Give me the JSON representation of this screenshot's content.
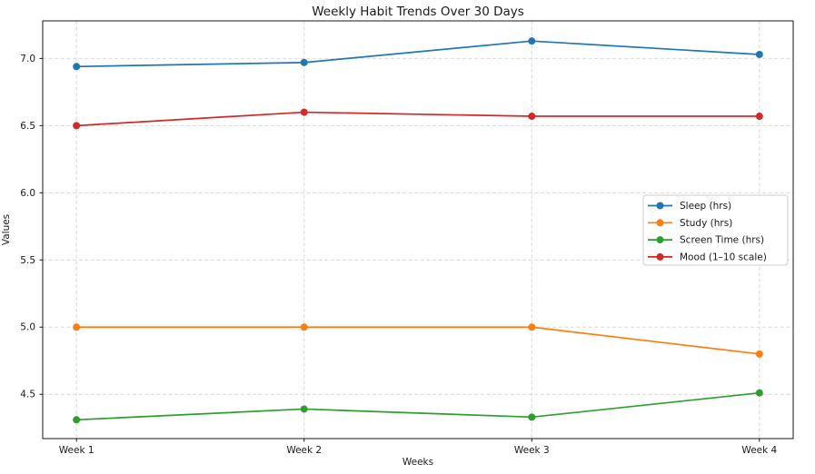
{
  "figure": {
    "background": "#ffffff",
    "text_color": "#1a1a1a"
  },
  "chart_data": {
    "type": "line",
    "title": "Weekly Habit Trends Over 30 Days",
    "xlabel": "Weeks",
    "ylabel": "Values",
    "categories": [
      "Week 1",
      "Week 2",
      "Week 3",
      "Week 4"
    ],
    "series": [
      {
        "name": "Sleep (hrs)",
        "color": "#1f77b4",
        "values": [
          6.94,
          6.97,
          7.13,
          7.03
        ]
      },
      {
        "name": "Study (hrs)",
        "color": "#ff7f0e",
        "values": [
          5.0,
          5.0,
          5.0,
          4.8
        ]
      },
      {
        "name": "Screen Time (hrs)",
        "color": "#2ca02c",
        "values": [
          4.31,
          4.39,
          4.33,
          4.51
        ]
      },
      {
        "name": "Mood (1–10 scale)",
        "color": "#d62728",
        "values": [
          6.5,
          6.6,
          6.57,
          6.57
        ]
      }
    ],
    "y_ticks": [
      4.5,
      5.0,
      5.5,
      6.0,
      6.5,
      7.0
    ],
    "ylim": [
      4.17,
      7.28
    ],
    "grid": true,
    "grid_style": "dashed",
    "grid_color": "#d9d9d9",
    "marker": "circle",
    "legend": {
      "position": "center-right",
      "entries": [
        "Sleep (hrs)",
        "Study (hrs)",
        "Screen Time (hrs)",
        "Mood (1–10 scale)"
      ]
    }
  }
}
